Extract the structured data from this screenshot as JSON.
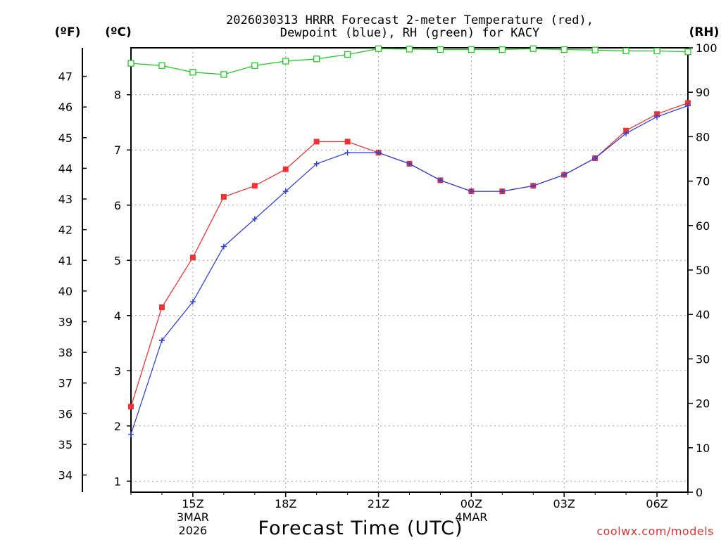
{
  "chart_data": {
    "type": "line",
    "title": "2026030313 HRRR Forecast 2-meter Temperature (red),",
    "title_line2": "Dewpoint (blue), RH (green) for KACY",
    "xlabel": "Forecast Time (UTC)",
    "credit": "coolwx.com/models",
    "units": {
      "fahrenheit": "(ºF)",
      "celsius": "(ºC)",
      "rh": "(RH)"
    },
    "x_hours": [
      13,
      14,
      15,
      16,
      17,
      18,
      19,
      20,
      21,
      22,
      23,
      24,
      25,
      26,
      27,
      28,
      29,
      30,
      31
    ],
    "xlim": [
      13,
      31
    ],
    "x_ticks": [
      {
        "hour": 15,
        "label": "15Z",
        "sub": [
          "3MAR",
          "2026"
        ]
      },
      {
        "hour": 18,
        "label": "18Z",
        "sub": []
      },
      {
        "hour": 21,
        "label": "21Z",
        "sub": []
      },
      {
        "hour": 24,
        "label": "00Z",
        "sub": [
          "4MAR"
        ]
      },
      {
        "hour": 27,
        "label": "03Z",
        "sub": []
      },
      {
        "hour": 30,
        "label": "06Z",
        "sub": []
      }
    ],
    "ylim_c": [
      0.8,
      8.85
    ],
    "y_ticks_c": [
      1,
      2,
      3,
      4,
      5,
      6,
      7,
      8
    ],
    "y_ticks_f": [
      34,
      35,
      36,
      37,
      38,
      39,
      40,
      41,
      42,
      43,
      44,
      45,
      46,
      47
    ],
    "ylim_rh": [
      0,
      100
    ],
    "y_ticks_rh": [
      0,
      10,
      20,
      30,
      40,
      50,
      60,
      70,
      80,
      90,
      100
    ],
    "series": [
      {
        "name": "Temperature",
        "color": "#ee3333",
        "marker": "filled-square",
        "axis": "celsius",
        "values": [
          2.35,
          4.15,
          5.05,
          6.15,
          6.35,
          6.65,
          7.15,
          7.15,
          6.95,
          6.75,
          6.45,
          6.25,
          6.25,
          6.35,
          6.55,
          6.85,
          7.35,
          7.65,
          7.85
        ]
      },
      {
        "name": "Dewpoint",
        "color": "#3344dd",
        "marker": "plus",
        "axis": "celsius",
        "values": [
          1.85,
          3.55,
          4.25,
          5.25,
          5.75,
          6.25,
          6.75,
          6.95,
          6.95,
          6.75,
          6.45,
          6.25,
          6.25,
          6.35,
          6.55,
          6.85,
          7.3,
          7.6,
          7.8
        ]
      },
      {
        "name": "RH",
        "color": "#22cc22",
        "marker": "open-square",
        "axis": "rh",
        "values": [
          96.5,
          96,
          94.5,
          94,
          96,
          97,
          97.5,
          98.5,
          99.8,
          99.7,
          99.6,
          99.6,
          99.6,
          99.8,
          99.6,
          99.5,
          99.3,
          99.3,
          99.1
        ]
      }
    ]
  }
}
